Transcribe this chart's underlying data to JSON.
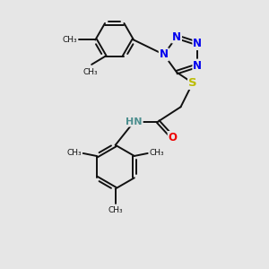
{
  "bg_color": "#e6e6e6",
  "bond_color": "#111111",
  "bond_width": 1.4,
  "dbo": 0.06,
  "atom_colors": {
    "N": "#0000ee",
    "S": "#bbbb00",
    "O": "#ee0000",
    "NH": "#4d8f8f",
    "C": "#111111"
  },
  "fs": 8.5,
  "figsize": [
    3.0,
    3.0
  ],
  "dpi": 100,
  "xlim": [
    0,
    10
  ],
  "ylim": [
    0,
    10
  ]
}
